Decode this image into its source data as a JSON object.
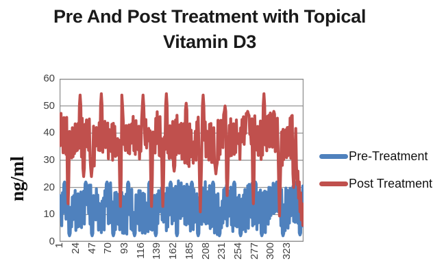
{
  "chart_data": {
    "type": "line",
    "title": "Pre And Post Treatment with Topical Vitamin D3",
    "title_lines": [
      "Pre And Post Treatment with Topical",
      "Vitamin D3"
    ],
    "ylabel": "ng/ml",
    "xlabel": "",
    "ylim": [
      0,
      60
    ],
    "y_ticks": [
      "0",
      "10",
      "20",
      "30",
      "40",
      "50",
      "60"
    ],
    "x_ticks": [
      "1",
      "24",
      "47",
      "70",
      "93",
      "116",
      "139",
      "162",
      "185",
      "208",
      "231",
      "254",
      "277",
      "300",
      "323"
    ],
    "x_tick_step": 23,
    "points_per_series": 346,
    "grid": true,
    "gridline_color": "#8a8a8a",
    "legend_position": "right",
    "seed": 11,
    "series": [
      {
        "name": "Pre-Treatment",
        "color": "#4F81BD",
        "band": [
          4,
          20.5
        ],
        "spikes": [
          [
            8,
            22
          ],
          [
            38,
            22
          ],
          [
            68,
            22
          ],
          [
            98,
            22
          ],
          [
            128,
            22
          ],
          [
            158,
            22
          ],
          [
            188,
            22
          ],
          [
            218,
            22
          ],
          [
            248,
            22
          ],
          [
            278,
            22
          ],
          [
            308,
            22
          ],
          [
            336,
            22
          ]
        ],
        "dips": [
          [
            15,
            2.2
          ],
          [
            47,
            2.2
          ],
          [
            77,
            2.2
          ],
          [
            107,
            2.2
          ],
          [
            137,
            2.2
          ],
          [
            167,
            2.2
          ],
          [
            197,
            2.2
          ],
          [
            227,
            2.2
          ],
          [
            257,
            2.2
          ],
          [
            287,
            2.2
          ],
          [
            317,
            2.2
          ],
          [
            341,
            2.5
          ]
        ],
        "overrides": []
      },
      {
        "name": "Post Treatment",
        "color": "#C0504D",
        "band": [
          30,
          46
        ],
        "spikes": [
          [
            30,
            54
          ],
          [
            60,
            54.5
          ],
          [
            89,
            54
          ],
          [
            119,
            54
          ],
          [
            152,
            54.5
          ],
          [
            180,
            51
          ],
          [
            204,
            54
          ],
          [
            235,
            50
          ],
          [
            267,
            48
          ],
          [
            290,
            54.5
          ],
          [
            304,
            48
          ],
          [
            330,
            46.5
          ]
        ],
        "dips": [
          [
            13,
            14
          ],
          [
            35,
            24
          ],
          [
            46,
            24
          ],
          [
            87,
            13
          ],
          [
            131,
            13
          ],
          [
            147,
            13
          ],
          [
            163,
            26
          ],
          [
            200,
            11
          ],
          [
            222,
            25
          ],
          [
            238,
            17
          ],
          [
            275,
            14
          ],
          [
            312,
            9.5
          ],
          [
            332,
            20
          ]
        ],
        "overrides": [
          [
            336,
            28
          ],
          [
            337,
            21
          ],
          [
            338,
            26
          ],
          [
            339,
            16
          ],
          [
            340,
            22
          ],
          [
            341,
            11
          ],
          [
            342,
            18
          ],
          [
            343,
            8
          ],
          [
            344,
            14
          ],
          [
            345,
            6
          ],
          [
            346,
            12
          ]
        ]
      }
    ]
  }
}
